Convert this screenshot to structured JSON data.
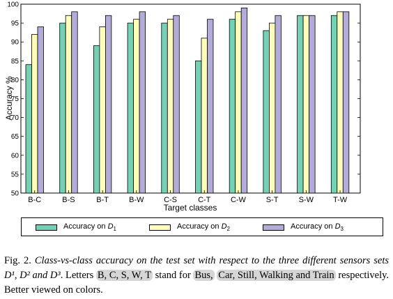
{
  "chart_data": {
    "type": "bar",
    "categories": [
      "B-C",
      "B-S",
      "B-T",
      "B-W",
      "C-S",
      "C-T",
      "C-W",
      "S-T",
      "S-W",
      "T-W"
    ],
    "series": [
      {
        "name": "Accuracy on D1",
        "legend_prefix": "Accuracy on ",
        "legend_var": "D",
        "legend_sub": "1",
        "color": "#75d1b6",
        "values": [
          84,
          95,
          89,
          95,
          95,
          85,
          96,
          93,
          97,
          97
        ]
      },
      {
        "name": "Accuracy on D2",
        "legend_prefix": "Accuracy on ",
        "legend_var": "D",
        "legend_sub": "2",
        "color": "#ffffbb",
        "values": [
          92,
          97,
          94,
          96,
          96,
          91,
          98,
          95,
          97,
          98
        ]
      },
      {
        "name": "Accuracy on D3",
        "legend_prefix": "Accuracy on ",
        "legend_var": "D",
        "legend_sub": "3",
        "color": "#b3acd9",
        "values": [
          94,
          98,
          97,
          98,
          97,
          96,
          99,
          97,
          97,
          98
        ]
      }
    ],
    "xlabel": "Target classes",
    "ylabel": "Accuracy %",
    "ylim": [
      50,
      100
    ],
    "yticks": [
      50,
      55,
      60,
      65,
      70,
      75,
      80,
      85,
      90,
      95,
      100
    ],
    "grid": false,
    "legend_position": "bottom"
  },
  "caption": {
    "fig_label": "Fig. 2.",
    "part1": "Class-vs-class accuracy on the test set with respect to the three different sensors sets",
    "sets": "D¹, D² and D³",
    "part2": ". Letters",
    "letters": "B, C, S, W, T",
    "part3": "stand for",
    "bus": "Bus,",
    "classes": "Car, Still, Walking and Train",
    "part4": "respectively. Better viewed on colors."
  }
}
